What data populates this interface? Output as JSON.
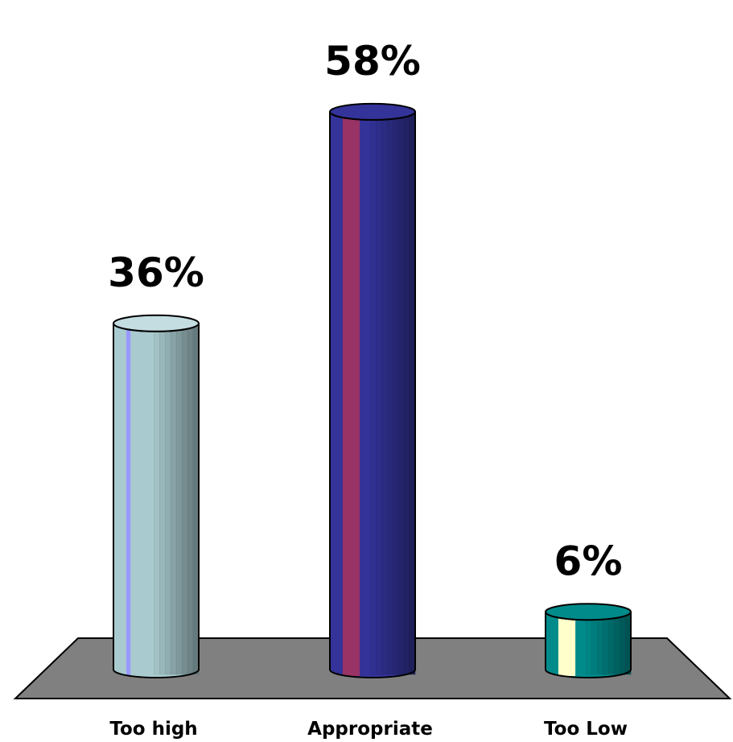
{
  "chart_data": {
    "type": "bar",
    "style": "3d-cylinder",
    "categories": [
      "Too high",
      "Appropriate",
      "Too Low"
    ],
    "values": [
      36,
      58,
      6
    ],
    "value_labels": [
      "36%",
      "58%",
      "6%"
    ],
    "ylim": [
      0,
      60
    ],
    "grid": false,
    "legend": "none",
    "bar_colors": [
      {
        "body": "#a9cbcf",
        "stripe": "#9999ff",
        "rim": "#c4dde0"
      },
      {
        "body": "#333399",
        "stripe": "#993366",
        "rim": "#333399"
      },
      {
        "body": "#008b8b",
        "stripe": "#ffffcc",
        "rim": "#008b8b"
      }
    ],
    "floor_color": "#808080"
  }
}
